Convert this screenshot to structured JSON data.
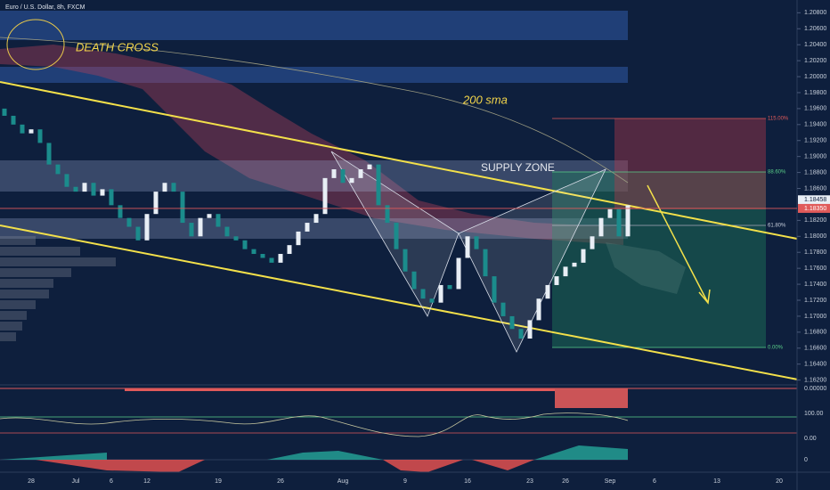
{
  "chart_data": {
    "type": "candlestick",
    "title": "Euro / U.S. Dollar, 8h, FXCM",
    "annotations": [
      "DEATH CROSS",
      "200 sma",
      "SUPPLY ZONE"
    ],
    "fib_labels": [
      "115.00%",
      "88.60%",
      "61.80%",
      "0.00%"
    ],
    "indicator_labels": [
      "0.00000",
      "100.00",
      "0.00",
      "0"
    ],
    "up_color": "#e8eef5",
    "down_color": "#1b8c8c",
    "categories": [
      null,
      null,
      null,
      "28",
      null,
      null,
      null,
      null,
      "Jul",
      null,
      null,
      null,
      "6",
      null,
      null,
      null,
      "12",
      null,
      null,
      null,
      null,
      null,
      null,
      null,
      "19",
      null,
      null,
      null,
      null,
      null,
      null,
      "26",
      null,
      null,
      null,
      null,
      null,
      null,
      "Aug",
      null,
      null,
      null,
      null,
      null,
      null,
      "9",
      null,
      null,
      null,
      null,
      null,
      null,
      "16",
      null,
      null,
      null,
      null,
      null,
      null,
      "23",
      null,
      null,
      null,
      "26",
      null,
      null,
      null,
      null,
      "Sep",
      null,
      null,
      null,
      null,
      "6",
      null,
      null,
      null,
      null,
      null,
      null,
      "13",
      null,
      null,
      null,
      null,
      null,
      null,
      "20",
      null
    ],
    "open": [
      1.196,
      1.1951,
      1.194,
      1.1929,
      1.1934,
      1.1917,
      1.189,
      1.1878,
      1.1862,
      1.1856,
      1.1867,
      1.1851,
      1.1859,
      1.1839,
      1.1823,
      1.1812,
      1.1795,
      1.1828,
      1.1856,
      1.1867,
      1.1856,
      1.1817,
      1.18,
      1.1823,
      1.1828,
      1.1812,
      1.18,
      1.1795,
      1.1784,
      1.1778,
      1.1773,
      1.1767,
      1.1778,
      1.1789,
      1.1806,
      1.1817,
      1.1828,
      1.1873,
      1.1884,
      1.1867,
      1.1873,
      1.1884,
      1.189,
      1.1839,
      1.1817,
      1.1784,
      1.1756,
      1.1734,
      1.1722,
      1.1717,
      1.1739,
      1.1734,
      1.1773,
      1.18,
      1.1784,
      1.175,
      1.1717,
      1.17,
      1.1684,
      1.1672,
      1.1695,
      1.1722,
      1.1739,
      1.175,
      1.1762,
      1.1767,
      1.1784,
      1.18,
      1.1823,
      1.1834,
      1.18,
      null,
      null,
      null,
      null,
      null,
      null,
      null,
      null,
      null,
      null,
      null,
      null,
      null,
      null,
      null,
      null,
      null,
      null
    ],
    "close": [
      1.1951,
      1.194,
      1.1929,
      1.1934,
      1.1917,
      1.189,
      1.1878,
      1.1862,
      1.1856,
      1.1867,
      1.1851,
      1.1859,
      1.1839,
      1.1823,
      1.1812,
      1.1795,
      1.1828,
      1.1856,
      1.1867,
      1.1856,
      1.1817,
      1.18,
      1.1823,
      1.1828,
      1.1812,
      1.18,
      1.1795,
      1.1784,
      1.1778,
      1.1773,
      1.1767,
      1.1778,
      1.1789,
      1.1806,
      1.1817,
      1.1828,
      1.1873,
      1.1884,
      1.1867,
      1.1873,
      1.1884,
      1.189,
      1.1839,
      1.1817,
      1.1784,
      1.1756,
      1.1734,
      1.1722,
      1.1717,
      1.1739,
      1.1734,
      1.1773,
      1.18,
      1.1784,
      1.175,
      1.1717,
      1.17,
      1.1684,
      1.1672,
      1.1695,
      1.1722,
      1.1739,
      1.175,
      1.1762,
      1.1767,
      1.1784,
      1.18,
      1.1823,
      1.1834,
      1.18,
      1.1839,
      null,
      null,
      null,
      null,
      null,
      null,
      null,
      null,
      null,
      null,
      null,
      null,
      null,
      null,
      null,
      null,
      null,
      null
    ],
    "ylim": [
      1.1614,
      1.2096
    ],
    "yticks": [
      {
        "value": 1.208,
        "label": "1.20800"
      },
      {
        "value": 1.206,
        "label": "1.20600"
      },
      {
        "value": 1.204,
        "label": "1.20400"
      },
      {
        "value": 1.202,
        "label": "1.20200"
      },
      {
        "value": 1.2,
        "label": "1.20000"
      },
      {
        "value": 1.198,
        "label": "1.19800"
      },
      {
        "value": 1.196,
        "label": "1.19600"
      },
      {
        "value": 1.194,
        "label": "1.19400"
      },
      {
        "value": 1.192,
        "label": "1.19200"
      },
      {
        "value": 1.19,
        "label": "1.19000"
      },
      {
        "value": 1.188,
        "label": "1.18800"
      },
      {
        "value": 1.186,
        "label": "1.18600"
      },
      {
        "value": 1.182,
        "label": "1.18200"
      },
      {
        "value": 1.18,
        "label": "1.18000"
      },
      {
        "value": 1.178,
        "label": "1.17800"
      },
      {
        "value": 1.176,
        "label": "1.17600"
      },
      {
        "value": 1.174,
        "label": "1.17400"
      },
      {
        "value": 1.172,
        "label": "1.17200"
      },
      {
        "value": 1.17,
        "label": "1.17000"
      },
      {
        "value": 1.168,
        "label": "1.16800"
      },
      {
        "value": 1.166,
        "label": "1.16600"
      },
      {
        "value": 1.164,
        "label": "1.16400"
      },
      {
        "value": 1.162,
        "label": "1.16200"
      }
    ],
    "price_levels": [
      1.18458,
      {
        "value": 1.1835,
        "label": "1.18350"
      }
    ]
  }
}
